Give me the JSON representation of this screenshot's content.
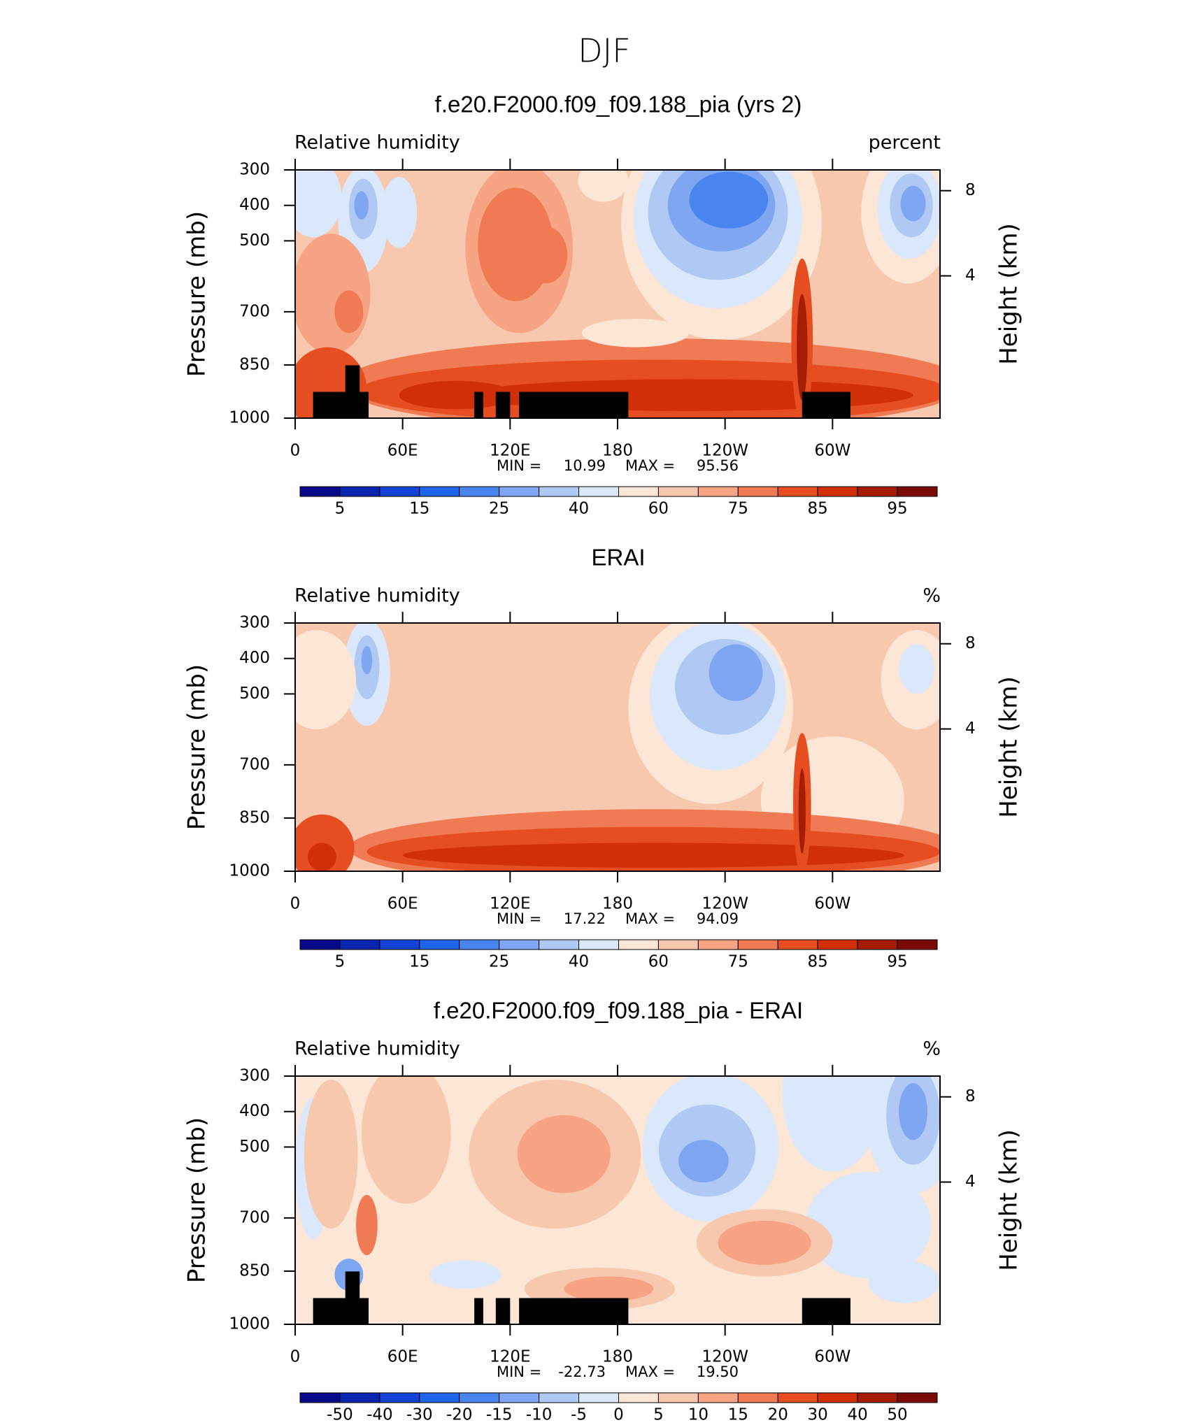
{
  "title": "DJF",
  "chart_data": [
    {
      "type": "contour",
      "title": "f.e20.F2000.f09_f09.188_pia (yrs 2)",
      "left_string": "Relative humidity",
      "right_string": "percent",
      "ylabel": "Pressure (mb)",
      "y2label": "Height (km)",
      "xlim": [
        0,
        360
      ],
      "xticks": [
        0,
        {
          "value": 60,
          "label": "60E"
        },
        {
          "value": 120,
          "label": "120E"
        },
        180,
        {
          "value": 240,
          "label": "120W"
        },
        {
          "value": 300,
          "label": "60W"
        }
      ],
      "ylim": [
        1000,
        300
      ],
      "yticks": [
        300,
        400,
        500,
        700,
        850,
        1000
      ],
      "y2ticks": [
        4,
        8
      ],
      "min_label": "MIN =",
      "min": 10.99,
      "max_label": "MAX =",
      "max": 95.56,
      "colorbar": {
        "labels": [
          5,
          15,
          25,
          40,
          60,
          75,
          85,
          95
        ],
        "colors": [
          "#08088a",
          "#0b26ae",
          "#1443d6",
          "#2063ee",
          "#4a84ef",
          "#7ea6f1",
          "#afc8f4",
          "#dbe7fa",
          "#fce6d6",
          "#f8c8ae",
          "#f6a483",
          "#ef7a53",
          "#e64e22",
          "#d12f08",
          "#a61c05",
          "#7a0909"
        ]
      }
    },
    {
      "type": "contour",
      "title": "ERAI",
      "left_string": "Relative humidity",
      "right_string": "%",
      "ylabel": "Pressure (mb)",
      "y2label": "Height (km)",
      "xlim": [
        0,
        360
      ],
      "xticks": [
        0,
        {
          "value": 60,
          "label": "60E"
        },
        {
          "value": 120,
          "label": "120E"
        },
        180,
        {
          "value": 240,
          "label": "120W"
        },
        {
          "value": 300,
          "label": "60W"
        }
      ],
      "ylim": [
        1000,
        300
      ],
      "yticks": [
        300,
        400,
        500,
        700,
        850,
        1000
      ],
      "y2ticks": [
        4,
        8
      ],
      "min_label": "MIN =",
      "min": 17.22,
      "max_label": "MAX =",
      "max": 94.09,
      "colorbar": {
        "labels": [
          5,
          15,
          25,
          40,
          60,
          75,
          85,
          95
        ],
        "colors": [
          "#08088a",
          "#0b26ae",
          "#1443d6",
          "#2063ee",
          "#4a84ef",
          "#7ea6f1",
          "#afc8f4",
          "#dbe7fa",
          "#fce6d6",
          "#f8c8ae",
          "#f6a483",
          "#ef7a53",
          "#e64e22",
          "#d12f08",
          "#a61c05",
          "#7a0909"
        ]
      }
    },
    {
      "type": "contour",
      "title": "f.e20.F2000.f09_f09.188_pia - ERAI",
      "left_string": "Relative humidity",
      "right_string": "%",
      "ylabel": "Pressure (mb)",
      "y2label": "Height (km)",
      "xlim": [
        0,
        360
      ],
      "xticks": [
        0,
        {
          "value": 60,
          "label": "60E"
        },
        {
          "value": 120,
          "label": "120E"
        },
        180,
        {
          "value": 240,
          "label": "120W"
        },
        {
          "value": 300,
          "label": "60W"
        }
      ],
      "ylim": [
        1000,
        300
      ],
      "yticks": [
        300,
        400,
        500,
        700,
        850,
        1000
      ],
      "y2ticks": [
        4,
        8
      ],
      "min_label": "MIN =",
      "min": -22.73,
      "max_label": "MAX =",
      "max": {
        "value": 19.5,
        "label": "19.50"
      },
      "colorbar": {
        "labels": [
          -50,
          -40,
          -30,
          -20,
          -15,
          -10,
          -5,
          0,
          5,
          10,
          15,
          20,
          30,
          40,
          50
        ],
        "colors": [
          "#08088a",
          "#0b26ae",
          "#1443d6",
          "#2063ee",
          "#4a84ef",
          "#7ea6f1",
          "#afc8f4",
          "#dbe7fa",
          "#fce6d6",
          "#f8c8ae",
          "#f6a483",
          "#ef7a53",
          "#e64e22",
          "#d12f08",
          "#a61c05",
          "#7a0909"
        ]
      }
    }
  ]
}
